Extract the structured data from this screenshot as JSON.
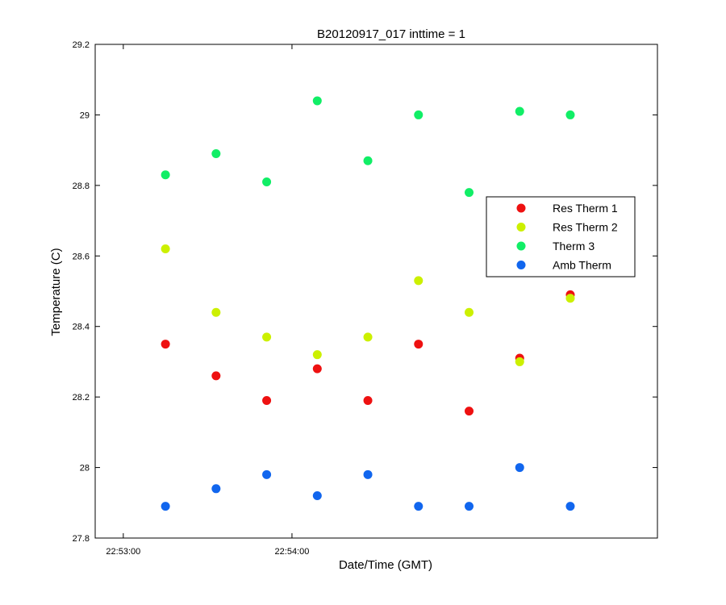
{
  "chart_data": {
    "type": "scatter",
    "title": "B20120917_017 inttime = 1",
    "xlabel": "Date/Time (GMT)",
    "ylabel": "Temperature (C)",
    "xlim_seconds_after_22_53": [
      -10,
      190
    ],
    "ylim": [
      27.8,
      29.2
    ],
    "x_ticks": [
      {
        "label": "22:53:00",
        "time": "22:53:00"
      },
      {
        "label": "22:54:00",
        "time": "22:54:00"
      }
    ],
    "y_ticks": [
      {
        "label": "27.8",
        "value": 27.8
      },
      {
        "label": "28",
        "value": 28.0
      },
      {
        "label": "28.2",
        "value": 28.2
      },
      {
        "label": "28.4",
        "value": 28.4
      },
      {
        "label": "28.6",
        "value": 28.6
      },
      {
        "label": "28.8",
        "value": 28.8
      },
      {
        "label": "29",
        "value": 29.0
      },
      {
        "label": "29.2",
        "value": 29.2
      }
    ],
    "x": [
      "22:53:15",
      "22:53:33",
      "22:53:51",
      "22:54:09",
      "22:54:27",
      "22:54:45",
      "22:55:03",
      "22:55:21",
      "22:55:39"
    ],
    "series": [
      {
        "name": "Res Therm 1",
        "color": "#ee1111",
        "values": [
          28.35,
          28.26,
          28.19,
          28.28,
          28.19,
          28.35,
          28.16,
          28.31,
          28.49
        ]
      },
      {
        "name": "Res Therm 2",
        "color": "#ccf000",
        "values": [
          28.62,
          28.44,
          28.37,
          28.32,
          28.37,
          28.53,
          28.44,
          28.3,
          28.48
        ]
      },
      {
        "name": "Therm 3",
        "color": "#11ee66",
        "values": [
          28.83,
          28.89,
          28.81,
          29.04,
          28.87,
          29.0,
          28.78,
          29.01,
          29.0
        ]
      },
      {
        "name": "Amb Therm",
        "color": "#1166ee",
        "values": [
          27.89,
          27.94,
          27.98,
          27.92,
          27.98,
          27.89,
          27.89,
          28.0,
          27.89
        ]
      }
    ],
    "legend_position": "right",
    "grid": false
  }
}
